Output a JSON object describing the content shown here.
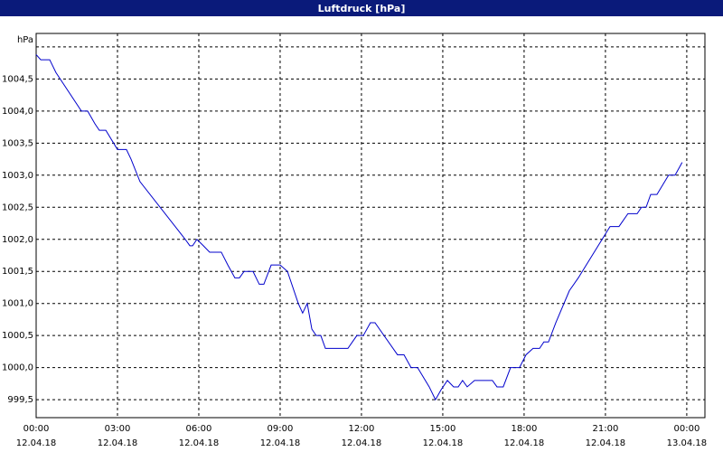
{
  "chart_data": {
    "type": "line",
    "title": "Luftdruck [hPa]",
    "x": [
      0,
      0.17,
      0.5,
      0.73,
      1.67,
      1.9,
      2.17,
      2.33,
      2.57,
      3.0,
      3.33,
      3.5,
      3.83,
      5.5,
      5.67,
      5.77,
      5.93,
      6.17,
      6.4,
      6.83,
      7.07,
      7.33,
      7.5,
      7.67,
      8.0,
      8.23,
      8.4,
      8.67,
      9.0,
      9.27,
      9.67,
      9.83,
      10.0,
      10.17,
      10.33,
      10.5,
      10.67,
      11.5,
      11.83,
      12.07,
      12.33,
      12.5,
      13.33,
      13.57,
      13.83,
      14.07,
      14.5,
      14.73,
      14.93,
      15.17,
      15.4,
      15.57,
      15.73,
      15.9,
      16.17,
      16.83,
      17.0,
      17.23,
      17.5,
      17.83,
      18.07,
      18.33,
      18.57,
      18.73,
      18.9,
      19.17,
      19.67,
      20.0,
      21.17,
      21.5,
      21.83,
      22.17,
      22.33,
      22.5,
      22.67,
      22.9,
      23.33,
      23.57,
      23.83
    ],
    "series": [
      {
        "color": "#0000cc",
        "values": [
          1004.88,
          1004.8,
          1004.8,
          1004.6,
          1004.0,
          1004.0,
          1003.8,
          1003.7,
          1003.7,
          1003.4,
          1003.4,
          1003.25,
          1002.9,
          1002.0,
          1001.9,
          1001.9,
          1002.0,
          1001.9,
          1001.8,
          1001.8,
          1001.6,
          1001.4,
          1001.4,
          1001.5,
          1001.5,
          1001.3,
          1001.3,
          1001.6,
          1001.6,
          1001.5,
          1001.0,
          1000.85,
          1001.0,
          1000.6,
          1000.5,
          1000.5,
          1000.3,
          1000.3,
          1000.5,
          1000.5,
          1000.7,
          1000.7,
          1000.2,
          1000.2,
          1000.0,
          1000.0,
          999.7,
          999.5,
          999.65,
          999.8,
          999.7,
          999.7,
          999.8,
          999.7,
          999.8,
          999.8,
          999.7,
          999.7,
          1000.0,
          1000.0,
          1000.2,
          1000.3,
          1000.3,
          1000.4,
          1000.4,
          1000.7,
          1001.2,
          1001.4,
          1002.2,
          1002.2,
          1002.4,
          1002.4,
          1002.5,
          1002.5,
          1002.7,
          1002.7,
          1003.0,
          1003.0,
          1003.2
        ]
      }
    ],
    "xlim": [
      0,
      24.67
    ],
    "xticks": [
      {
        "value": 0,
        "label": "00:00"
      },
      {
        "value": 3,
        "label": "03:00"
      },
      {
        "value": 6,
        "label": "06:00"
      },
      {
        "value": 9,
        "label": "09:00"
      },
      {
        "value": 12,
        "label": "12:00"
      },
      {
        "value": 15,
        "label": "15:00"
      },
      {
        "value": 18,
        "label": "18:00"
      },
      {
        "value": 21,
        "label": "21:00"
      },
      {
        "value": 24,
        "label": "00:00"
      }
    ],
    "xtick_dates": [
      "12.04.18",
      "12.04.18",
      "12.04.18",
      "12.04.18",
      "12.04.18",
      "12.04.18",
      "12.04.18",
      "12.04.18",
      "13.04.18"
    ],
    "ylim": [
      999.22,
      1005.21
    ],
    "yticks": [
      {
        "value": 999.5,
        "label": "999,5"
      },
      {
        "value": 1000,
        "label": "1000,0"
      },
      {
        "value": 1000.5,
        "label": "1000,5"
      },
      {
        "value": 1001,
        "label": "1001,0"
      },
      {
        "value": 1001.5,
        "label": "1001,5"
      },
      {
        "value": 1002,
        "label": "1002,0"
      },
      {
        "value": 1002.5,
        "label": "1002,5"
      },
      {
        "value": 1003,
        "label": "1003,0"
      },
      {
        "value": 1003.5,
        "label": "1003,5"
      },
      {
        "value": 1004,
        "label": "1004,0"
      },
      {
        "value": 1004.5,
        "label": "1004,5"
      },
      {
        "value": 1005,
        "label": "hPa"
      }
    ],
    "grid": true
  }
}
